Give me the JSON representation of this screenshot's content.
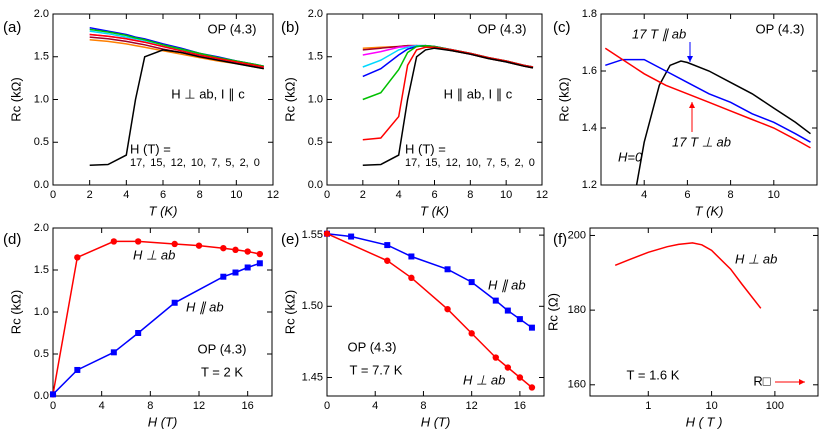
{
  "chart_data": [
    {
      "type": "line",
      "label": "(a)",
      "xlabel": "T (K)",
      "ylabel": "Rc (kΩ)",
      "xlim": [
        0,
        12
      ],
      "xticks": [
        0,
        2,
        4,
        6,
        8,
        10,
        12
      ],
      "ylim": [
        0,
        2
      ],
      "yticks": [
        {
          "value": 0,
          "label": "0.0"
        },
        0.5,
        {
          "value": 1,
          "label": "1.0"
        },
        1.5,
        {
          "value": 2,
          "label": "2.0"
        }
      ],
      "annotations": [
        "OP (4.3)",
        "H ⊥ ab, I ∥ c"
      ],
      "legend_title": "H (T) =",
      "x": [
        2,
        3,
        4,
        4.5,
        5,
        6,
        7,
        8,
        9,
        10,
        11,
        11.5
      ],
      "series": [
        {
          "name": "17,",
          "color": "#ff7f00",
          "values": [
            1.7,
            1.68,
            1.65,
            1.63,
            1.61,
            1.57,
            1.53,
            1.49,
            1.45,
            1.42,
            1.38,
            1.36
          ]
        },
        {
          "name": "15,",
          "color": "#a0002a",
          "values": [
            1.73,
            1.71,
            1.68,
            1.66,
            1.64,
            1.59,
            1.55,
            1.51,
            1.47,
            1.43,
            1.39,
            1.37
          ]
        },
        {
          "name": "12,",
          "color": "#ff00ff",
          "values": [
            1.76,
            1.74,
            1.71,
            1.69,
            1.67,
            1.62,
            1.57,
            1.52,
            1.48,
            1.44,
            1.4,
            1.38
          ]
        },
        {
          "name": "10,",
          "color": "#00d8ff",
          "values": [
            1.8,
            1.77,
            1.73,
            1.71,
            1.69,
            1.64,
            1.58,
            1.53,
            1.49,
            1.45,
            1.41,
            1.39
          ]
        },
        {
          "name": "7,",
          "color": "#0000ff",
          "values": [
            1.84,
            1.8,
            1.76,
            1.73,
            1.71,
            1.65,
            1.6,
            1.54,
            1.5,
            1.45,
            1.41,
            1.39
          ]
        },
        {
          "name": "5,",
          "color": "#00c000",
          "values": [
            1.82,
            1.79,
            1.75,
            1.72,
            1.7,
            1.64,
            1.59,
            1.54,
            1.49,
            1.45,
            1.41,
            1.39
          ]
        },
        {
          "name": "2,",
          "color": "#ff0000",
          "values": [
            1.76,
            1.74,
            1.71,
            1.69,
            1.67,
            1.62,
            1.57,
            1.52,
            1.48,
            1.44,
            1.4,
            1.38
          ]
        },
        {
          "name": "0",
          "color": "#000000",
          "values": [
            0.23,
            0.24,
            0.35,
            1.0,
            1.5,
            1.58,
            1.55,
            1.5,
            1.46,
            1.42,
            1.38,
            1.36
          ]
        }
      ]
    },
    {
      "type": "line",
      "label": "(b)",
      "xlabel": "T (K)",
      "ylabel": "Rc (kΩ)",
      "xlim": [
        0,
        12
      ],
      "xticks": [
        0,
        2,
        4,
        6,
        8,
        10,
        12
      ],
      "ylim": [
        0,
        2
      ],
      "yticks": [
        {
          "value": 0,
          "label": "0.0"
        },
        0.5,
        {
          "value": 1,
          "label": "1.0"
        },
        1.5,
        {
          "value": 2,
          "label": "2.0"
        }
      ],
      "annotations": [
        "OP (4.3)",
        "H ∥ ab, I ∥ c"
      ],
      "legend_title": "H (T) =",
      "x": [
        2,
        3,
        4,
        4.5,
        5,
        5.5,
        6,
        7,
        8,
        9,
        10,
        11,
        11.5
      ],
      "series": [
        {
          "name": "17,",
          "color": "#ff7f00",
          "values": [
            1.6,
            1.61,
            1.62,
            1.63,
            1.63,
            1.62,
            1.61,
            1.57,
            1.53,
            1.48,
            1.44,
            1.39,
            1.37
          ]
        },
        {
          "name": "15,",
          "color": "#a0002a",
          "values": [
            1.58,
            1.6,
            1.62,
            1.63,
            1.63,
            1.62,
            1.61,
            1.57,
            1.53,
            1.48,
            1.44,
            1.39,
            1.37
          ]
        },
        {
          "name": "12,",
          "color": "#ff00ff",
          "values": [
            1.52,
            1.56,
            1.61,
            1.62,
            1.63,
            1.63,
            1.62,
            1.58,
            1.53,
            1.49,
            1.44,
            1.4,
            1.38
          ]
        },
        {
          "name": "10,",
          "color": "#00d8ff",
          "values": [
            1.38,
            1.46,
            1.58,
            1.61,
            1.63,
            1.63,
            1.62,
            1.58,
            1.54,
            1.49,
            1.44,
            1.4,
            1.38
          ]
        },
        {
          "name": "7,",
          "color": "#0000ff",
          "values": [
            1.27,
            1.36,
            1.52,
            1.59,
            1.62,
            1.63,
            1.62,
            1.58,
            1.54,
            1.49,
            1.45,
            1.4,
            1.38
          ]
        },
        {
          "name": "5,",
          "color": "#00c000",
          "values": [
            1.0,
            1.08,
            1.35,
            1.55,
            1.62,
            1.63,
            1.62,
            1.58,
            1.54,
            1.49,
            1.45,
            1.4,
            1.38
          ]
        },
        {
          "name": "2,",
          "color": "#ff0000",
          "values": [
            0.53,
            0.55,
            0.8,
            1.4,
            1.58,
            1.61,
            1.61,
            1.58,
            1.54,
            1.49,
            1.45,
            1.4,
            1.38
          ]
        },
        {
          "name": "0",
          "color": "#000000",
          "values": [
            0.23,
            0.24,
            0.35,
            1.0,
            1.5,
            1.58,
            1.6,
            1.57,
            1.53,
            1.48,
            1.44,
            1.39,
            1.37
          ]
        }
      ]
    },
    {
      "type": "line",
      "label": "(c)",
      "xlabel": "T (K)",
      "ylabel": "Rc (kΩ)",
      "xlim": [
        2,
        12
      ],
      "xticks": [
        4,
        6,
        8,
        10
      ],
      "ylim": [
        1.2,
        1.8
      ],
      "yticks": [
        1.2,
        1.4,
        1.6,
        1.8
      ],
      "annotations": [
        "OP (4.3)"
      ],
      "series": [
        {
          "name": "H=0",
          "color": "#000000",
          "x": [
            3.65,
            4,
            4.7,
            5.2,
            5.7,
            6,
            7,
            8,
            9,
            10,
            11,
            11.7
          ],
          "values": [
            1.2,
            1.35,
            1.55,
            1.62,
            1.635,
            1.63,
            1.6,
            1.56,
            1.52,
            1.47,
            1.42,
            1.38
          ]
        },
        {
          "name": "17 T ∥ ab",
          "color": "#0000ff",
          "x": [
            2.2,
            3,
            4,
            5,
            6,
            7,
            8,
            9,
            10,
            11,
            11.7
          ],
          "values": [
            1.62,
            1.64,
            1.64,
            1.6,
            1.56,
            1.52,
            1.49,
            1.45,
            1.42,
            1.38,
            1.35
          ]
        },
        {
          "name": "17 T ⊥ ab",
          "color": "#ff0000",
          "x": [
            2.2,
            3,
            4,
            5,
            6,
            7,
            8,
            9,
            10,
            11,
            11.7
          ],
          "values": [
            1.68,
            1.64,
            1.59,
            1.55,
            1.52,
            1.49,
            1.46,
            1.43,
            1.4,
            1.36,
            1.33
          ]
        }
      ]
    },
    {
      "type": "line",
      "label": "(d)",
      "xlabel": "H (T)",
      "ylabel": "Rc (kΩ)",
      "xlim": [
        0,
        18
      ],
      "xticks": [
        0,
        4,
        8,
        12,
        16
      ],
      "ylim": [
        0,
        2
      ],
      "yticks": [
        {
          "value": 0,
          "label": "0.0"
        },
        0.5,
        {
          "value": 1,
          "label": "1.0"
        },
        1.5,
        {
          "value": 2,
          "label": "2.0"
        }
      ],
      "annotations": [
        "OP (4.3)",
        "T = 2 K"
      ],
      "series": [
        {
          "name": "H ⊥ ab",
          "color": "#ff0000",
          "marker": "circle",
          "x": [
            0,
            2,
            5,
            7,
            10,
            12,
            14,
            15,
            16,
            17
          ],
          "values": [
            0.02,
            1.65,
            1.84,
            1.84,
            1.81,
            1.79,
            1.76,
            1.74,
            1.72,
            1.69
          ]
        },
        {
          "name": "H ∥ ab",
          "color": "#0000ff",
          "marker": "square",
          "x": [
            0,
            2,
            5,
            7,
            10,
            14,
            15,
            16,
            17
          ],
          "values": [
            0.02,
            0.31,
            0.52,
            0.75,
            1.11,
            1.42,
            1.47,
            1.53,
            1.58
          ]
        }
      ]
    },
    {
      "type": "line",
      "label": "(e)",
      "xlabel": "H (T)",
      "ylabel": "Rc (kΩ)",
      "xlim": [
        0,
        18
      ],
      "xticks": [
        0,
        4,
        8,
        12,
        16
      ],
      "ylim": [
        1.437,
        1.555
      ],
      "yticks": [
        1.45,
        {
          "value": 1.5,
          "label": "1.50"
        },
        1.55
      ],
      "annotations": [
        "OP (4.3)",
        "T = 7.7 K"
      ],
      "series": [
        {
          "name": "H ∥ ab",
          "color": "#0000ff",
          "marker": "square",
          "x": [
            0,
            2,
            5,
            7,
            10,
            12,
            14,
            15,
            16,
            17
          ],
          "values": [
            1.551,
            1.549,
            1.543,
            1.535,
            1.526,
            1.517,
            1.504,
            1.497,
            1.491,
            1.485
          ]
        },
        {
          "name": "H ⊥ ab",
          "color": "#ff0000",
          "marker": "circle",
          "x": [
            0,
            5,
            7,
            10,
            12,
            14,
            15,
            16,
            17
          ],
          "values": [
            1.551,
            1.532,
            1.52,
            1.498,
            1.481,
            1.464,
            1.457,
            1.45,
            1.443
          ]
        }
      ]
    },
    {
      "type": "line",
      "label": "(f)",
      "xlabel": "H ( T )",
      "ylabel": "Rc (Ω)",
      "xscale": "log",
      "xlim": [
        0.12,
        480
      ],
      "xticks": [
        1,
        10,
        100
      ],
      "ylim": [
        157,
        202
      ],
      "yticks": [
        160,
        180,
        200
      ],
      "annotations": [
        "T = 1.6 K",
        "R□"
      ],
      "series": [
        {
          "name": "H ⊥ ab",
          "color": "#ff0000",
          "x": [
            0.3,
            0.5,
            1,
            2,
            3,
            5,
            7,
            10,
            20,
            30,
            60
          ],
          "values": [
            192,
            193.5,
            195.5,
            197,
            197.6,
            198,
            197.5,
            196,
            191,
            187,
            180.5
          ]
        }
      ]
    }
  ]
}
